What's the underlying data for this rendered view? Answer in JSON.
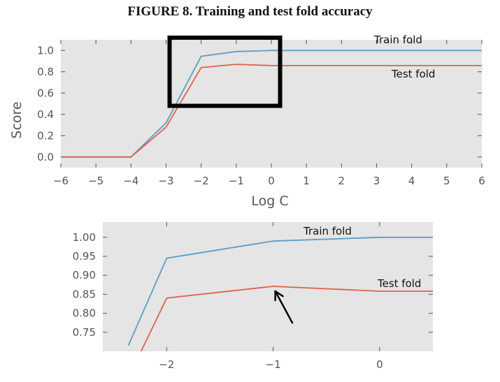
{
  "figure_title": "FIGURE 8. Training and test fold accuracy",
  "colors": {
    "train": "#5a9ec9",
    "test": "#e0624a",
    "panel": "#e5e5e5",
    "highlight": "#000000"
  },
  "chart_data": [
    {
      "type": "line",
      "title": "",
      "xlabel": "Log C",
      "ylabel": "Score",
      "xlim": [
        -6,
        6
      ],
      "ylim": [
        -0.1,
        1.1
      ],
      "xticks": [
        -6,
        -5,
        -4,
        -3,
        -2,
        -1,
        0,
        1,
        2,
        3,
        4,
        5,
        6
      ],
      "xtick_labels": [
        "−6",
        "−5",
        "−4",
        "−3",
        "−2",
        "−1",
        "0",
        "1",
        "2",
        "3",
        "4",
        "5",
        "6"
      ],
      "yticks": [
        0.0,
        0.2,
        0.4,
        0.6,
        0.8,
        1.0
      ],
      "ytick_labels": [
        "0.0",
        "0.2",
        "0.4",
        "0.6",
        "0.8",
        "1.0"
      ],
      "grid": false,
      "series": [
        {
          "name": "Train fold",
          "x": [
            -6,
            -5,
            -4,
            -3,
            -2,
            -1,
            0,
            1,
            2,
            3,
            4,
            5,
            6
          ],
          "y": [
            0.0,
            0.0,
            0.0,
            0.32,
            0.945,
            0.99,
            1.0,
            1.0,
            1.0,
            1.0,
            1.0,
            1.0,
            1.0
          ]
        },
        {
          "name": "Test fold",
          "x": [
            -6,
            -5,
            -4,
            -3,
            -2,
            -1,
            0,
            1,
            2,
            3,
            4,
            5,
            6
          ],
          "y": [
            0.0,
            0.0,
            0.0,
            0.28,
            0.84,
            0.87,
            0.858,
            0.858,
            0.858,
            0.858,
            0.858,
            0.858,
            0.858
          ]
        }
      ],
      "annotations": [
        {
          "type": "highlight-box",
          "x_range": [
            -2.9,
            0.25
          ],
          "y_range": [
            0.48,
            1.12
          ]
        }
      ]
    },
    {
      "type": "line",
      "title": "",
      "xlabel": "",
      "ylabel": "",
      "xlim": [
        -2.6,
        0.5
      ],
      "ylim": [
        0.7,
        1.04
      ],
      "xticks": [
        -2,
        -1,
        0
      ],
      "xtick_labels": [
        "−2",
        "−1",
        "0"
      ],
      "yticks": [
        0.75,
        0.8,
        0.85,
        0.9,
        0.95,
        1.0
      ],
      "ytick_labels": [
        "0.75",
        "0.80",
        "0.85",
        "0.90",
        "0.95",
        "1.00"
      ],
      "grid": false,
      "series": [
        {
          "name": "Train fold",
          "x": [
            -2.36,
            -2,
            -1,
            0,
            0.5
          ],
          "y": [
            0.715,
            0.945,
            0.99,
            1.0,
            1.0
          ]
        },
        {
          "name": "Test fold",
          "x": [
            -2.24,
            -2,
            -1,
            0,
            0.5
          ],
          "y": [
            0.7,
            0.84,
            0.871,
            0.858,
            0.858
          ]
        }
      ],
      "annotations": [
        {
          "type": "arrow",
          "from": [
            -0.82,
            0.775
          ],
          "to": [
            -0.98,
            0.858
          ]
        }
      ]
    }
  ]
}
